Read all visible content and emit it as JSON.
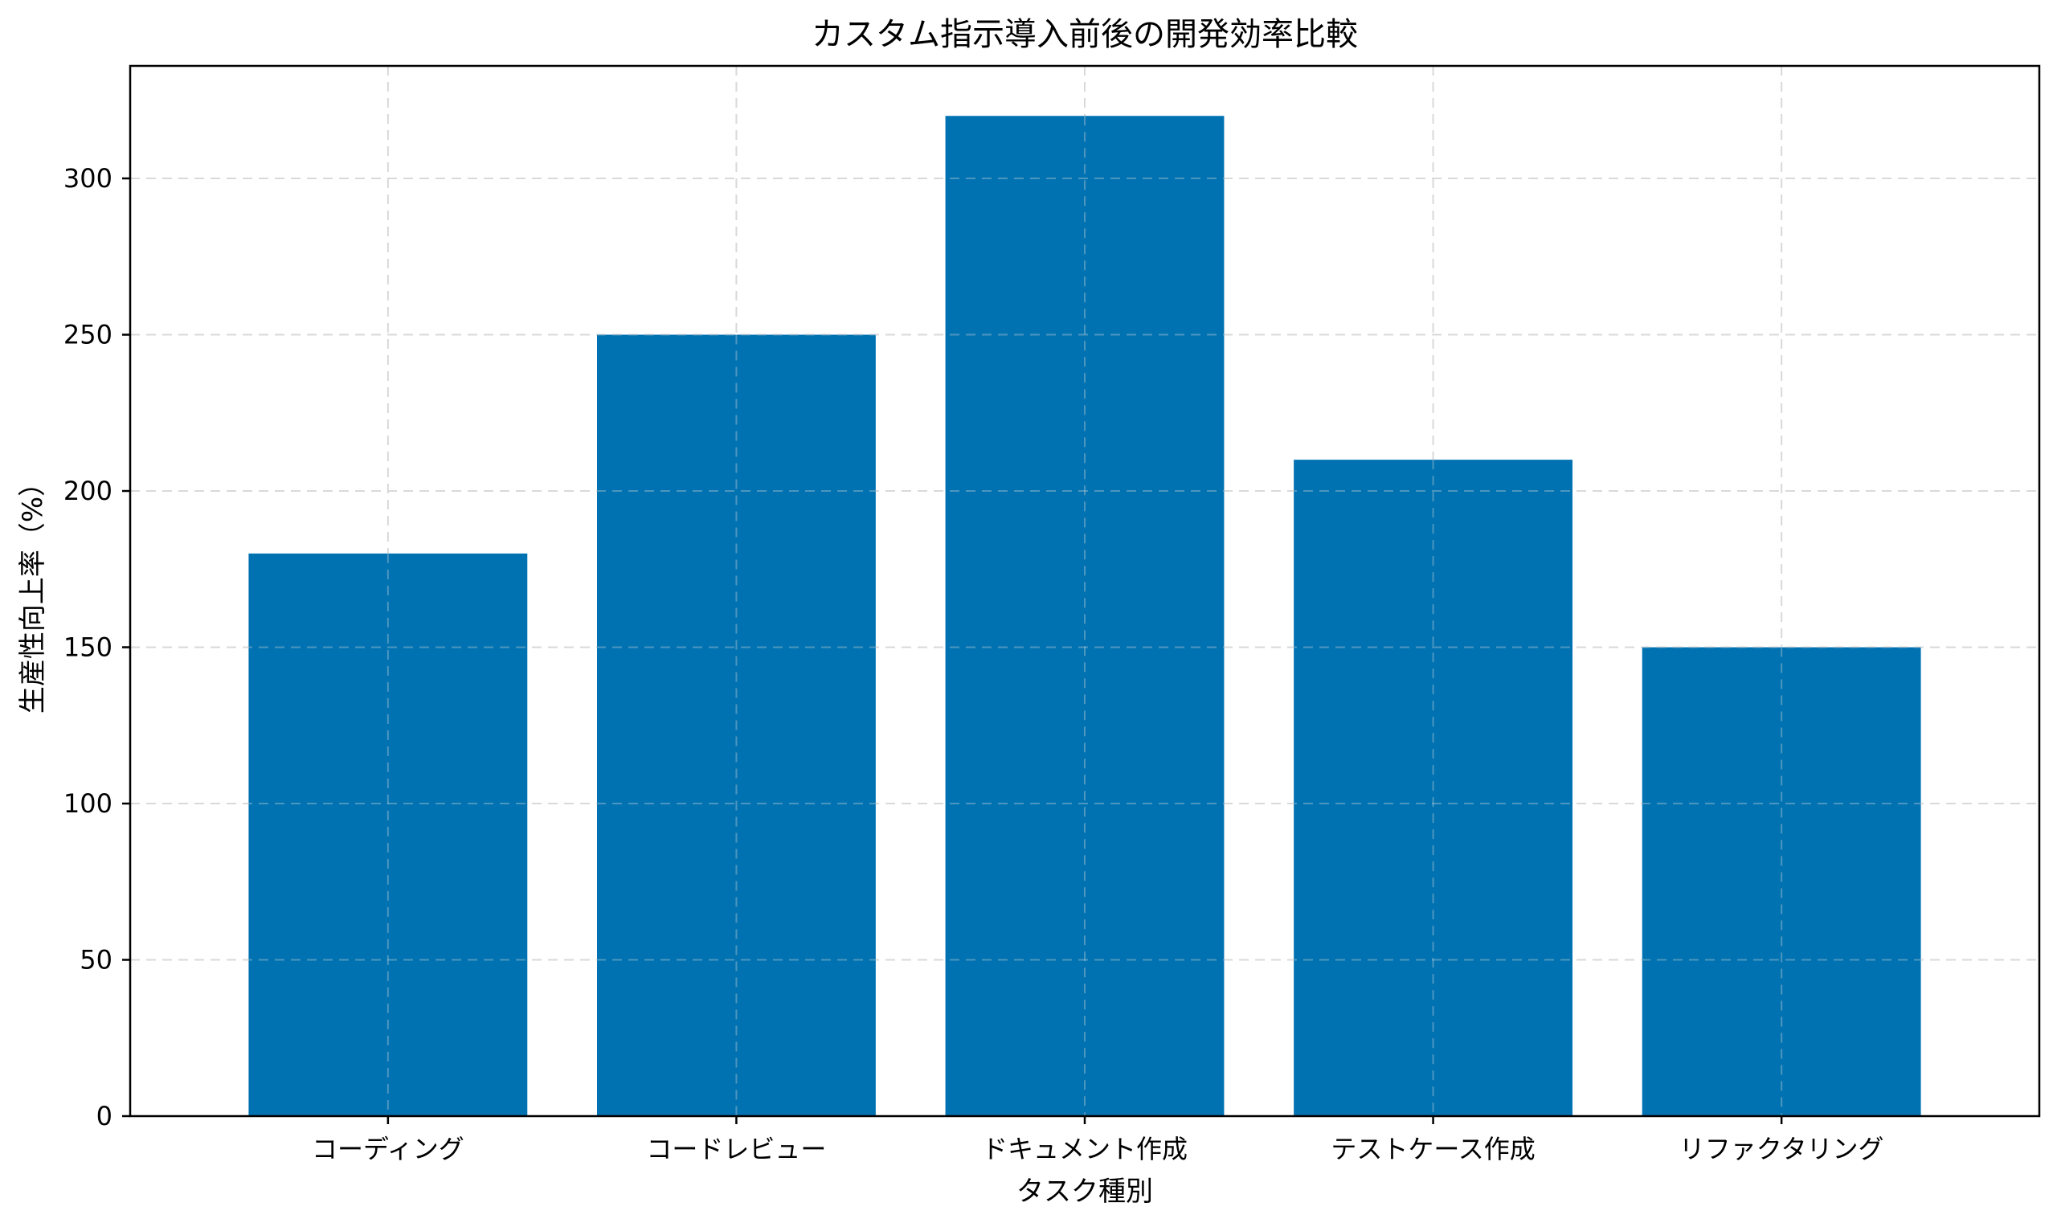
{
  "chart_data": {
    "type": "bar",
    "title": "カスタム指示導入前後の開発効率比較",
    "xlabel": "タスク種別",
    "ylabel": "生産性向上率（%）",
    "categories": [
      "コーディング",
      "コードレビュー",
      "ドキュメント作成",
      "テストケース作成",
      "リファクタリング"
    ],
    "values": [
      180,
      250,
      320,
      210,
      150
    ],
    "ylim": [
      0,
      336
    ],
    "yticks": [
      0,
      50,
      100,
      150,
      200,
      250,
      300
    ],
    "grid": true,
    "bar_color": "#0072b2"
  }
}
